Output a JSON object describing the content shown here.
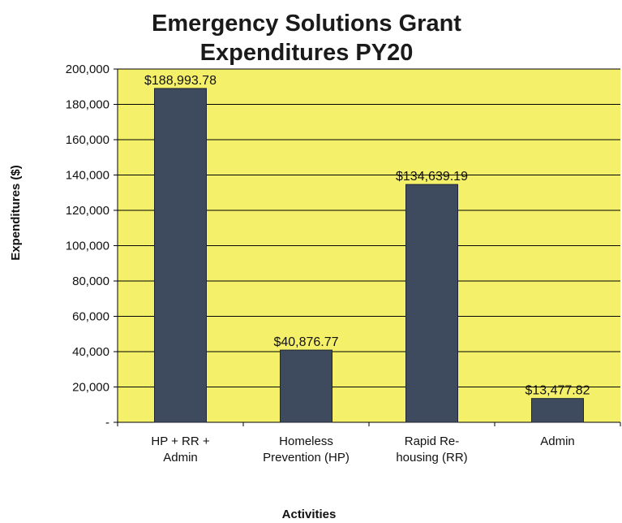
{
  "chart_data": {
    "type": "bar",
    "title_lines": [
      "Emergency Solutions Grant",
      "Expenditures PY20"
    ],
    "xlabel": "Activities",
    "ylabel": "Expenditures ($)",
    "ylim": [
      0,
      200000
    ],
    "yticks": [
      0,
      20000,
      40000,
      60000,
      80000,
      100000,
      120000,
      140000,
      160000,
      180000,
      200000
    ],
    "ytick_labels": [
      "-",
      "20,000",
      "40,000",
      "60,000",
      "80,000",
      "100,000",
      "120,000",
      "140,000",
      "160,000",
      "180,000",
      "200,000"
    ],
    "grid": true,
    "categories": [
      [
        "HP + RR +",
        "Admin"
      ],
      [
        "Homeless",
        "Prevention (HP)"
      ],
      [
        "Rapid Re-",
        "housing (RR)"
      ],
      [
        "Admin"
      ]
    ],
    "values": [
      188993.78,
      40876.77,
      134639.19,
      13477.82
    ],
    "data_labels": [
      "$188,993.78",
      "$40,876.77",
      "$134,639.19",
      "$13,477.82"
    ],
    "colors": {
      "plot_background": "#f4f06a",
      "bar": "#3e4a5e",
      "grid": "#000000"
    }
  }
}
